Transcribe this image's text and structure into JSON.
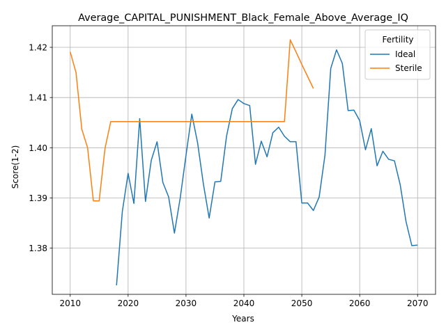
{
  "chart_data": {
    "type": "line",
    "title": "Average_CAPITAL_PUNISHMENT_Black_Female_Above_Average_IQ",
    "xlabel": "Years",
    "ylabel": "Score(1-2)",
    "xlim": [
      2006.9,
      2073.1
    ],
    "ylim": [
      1.3708,
      1.4243
    ],
    "xticks": [
      2010,
      2020,
      2030,
      2040,
      2050,
      2060,
      2070
    ],
    "yticks": [
      1.38,
      1.39,
      1.4,
      1.41,
      1.42
    ],
    "ytick_labels": [
      "1.38",
      "1.39",
      "1.40",
      "1.41",
      "1.42"
    ],
    "grid": true,
    "legend": {
      "title": "Fertility",
      "placement": "top-right"
    },
    "series": [
      {
        "name": "Ideal",
        "color": "#1f77b4",
        "x": [
          2018,
          2019,
          2020,
          2021,
          2022,
          2023,
          2024,
          2025,
          2026,
          2027,
          2028,
          2029,
          2030,
          2031,
          2032,
          2033,
          2034,
          2035,
          2036,
          2037,
          2038,
          2039,
          2040,
          2041,
          2042,
          2043,
          2044,
          2045,
          2046,
          2047,
          2048,
          2049,
          2050,
          2051,
          2052,
          2053,
          2054,
          2055,
          2056,
          2057,
          2058,
          2059,
          2060,
          2061,
          2062,
          2063,
          2064,
          2065,
          2066,
          2067,
          2068,
          2069,
          2070
        ],
        "y": [
          1.3726,
          1.3873,
          1.3949,
          1.3889,
          1.4058,
          1.3893,
          1.3975,
          1.4012,
          1.3931,
          1.3902,
          1.383,
          1.39,
          1.3985,
          1.4067,
          1.401,
          1.3928,
          1.386,
          1.3932,
          1.3933,
          1.4023,
          1.4078,
          1.4096,
          1.4088,
          1.4084,
          1.3967,
          1.4013,
          1.3982,
          1.403,
          1.4041,
          1.4023,
          1.4012,
          1.4012,
          1.389,
          1.389,
          1.3875,
          1.3902,
          1.3985,
          1.4158,
          1.4195,
          1.4168,
          1.4074,
          1.4075,
          1.4054,
          1.3996,
          1.4038,
          1.3964,
          1.3993,
          1.3977,
          1.3974,
          1.3926,
          1.3853,
          1.3805,
          1.3806
        ]
      },
      {
        "name": "Sterile",
        "color": "#ff7f0e",
        "x": [
          2010,
          2011,
          2012,
          2013,
          2014,
          2015,
          2016,
          2017,
          2018,
          2019,
          2020,
          2021,
          2022,
          2023,
          2024,
          2025,
          2026,
          2027,
          2028,
          2029,
          2030,
          2031,
          2032,
          2033,
          2034,
          2035,
          2036,
          2037,
          2038,
          2039,
          2040,
          2041,
          2042,
          2043,
          2044,
          2045,
          2046,
          2047,
          2048,
          2049,
          2050,
          2051,
          2052
        ],
        "y": [
          1.4191,
          1.415,
          1.4037,
          1.4,
          1.3894,
          1.3894,
          1.3998,
          1.4052,
          1.4052,
          1.4052,
          1.4052,
          1.4052,
          1.4052,
          1.4052,
          1.4052,
          1.4052,
          1.4052,
          1.4052,
          1.4052,
          1.4052,
          1.4052,
          1.4052,
          1.4052,
          1.4052,
          1.4052,
          1.4052,
          1.4052,
          1.4052,
          1.4052,
          1.4052,
          1.4052,
          1.4052,
          1.4052,
          1.4052,
          1.4052,
          1.4052,
          1.4052,
          1.4052,
          1.4215,
          1.4191,
          1.4166,
          1.4142,
          1.4118
        ]
      }
    ]
  }
}
